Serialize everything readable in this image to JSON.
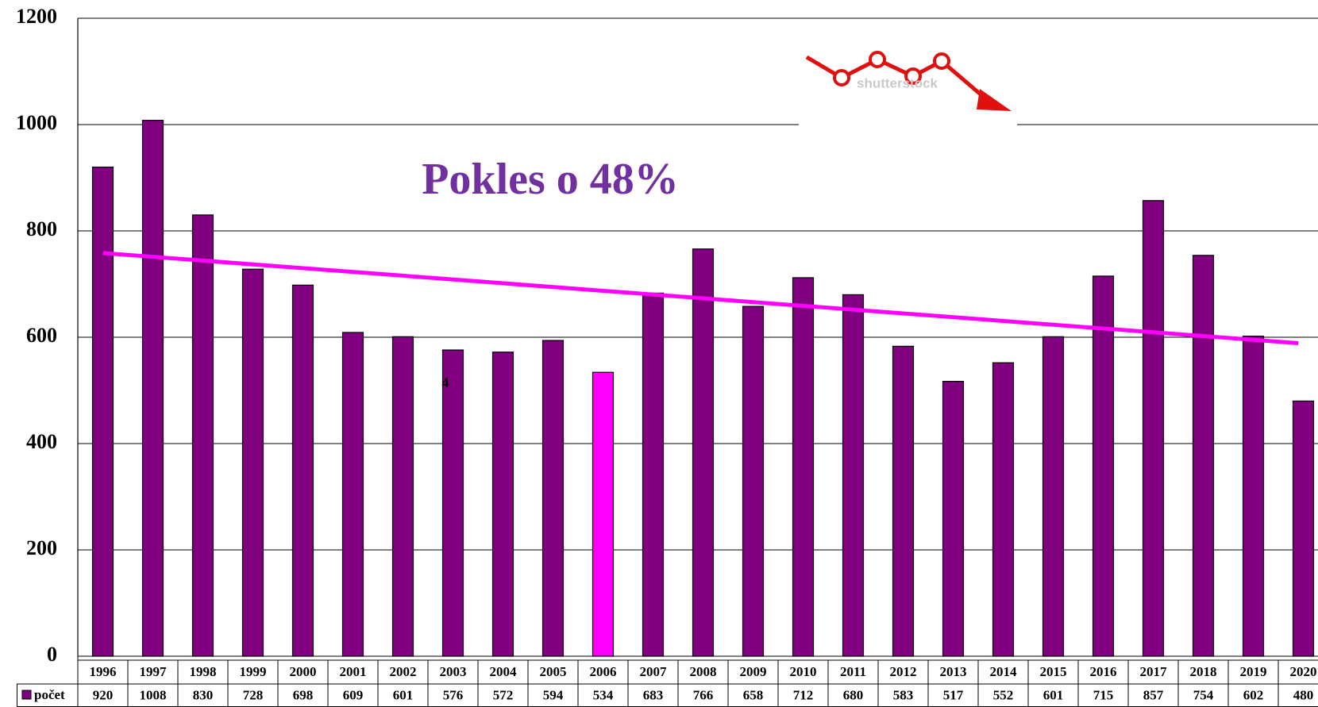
{
  "chart_data": {
    "type": "bar",
    "categories": [
      "1996",
      "1997",
      "1998",
      "1999",
      "2000",
      "2001",
      "2002",
      "2003",
      "2004",
      "2005",
      "2006",
      "2007",
      "2008",
      "2009",
      "2010",
      "2011",
      "2012",
      "2013",
      "2014",
      "2015",
      "2016",
      "2017",
      "2018",
      "2019",
      "2020"
    ],
    "series": [
      {
        "name": "počet",
        "color": "#800080",
        "values": [
          920,
          1008,
          830,
          728,
          698,
          609,
          601,
          576,
          572,
          594,
          534,
          683,
          766,
          658,
          712,
          680,
          583,
          517,
          552,
          601,
          715,
          857,
          754,
          602,
          480
        ]
      }
    ],
    "highlight": {
      "category": "2006",
      "color": "#ff00ff"
    },
    "trendline": {
      "color": "#ff00ff"
    },
    "ylim": [
      0,
      1200
    ],
    "yticks": [
      0,
      200,
      400,
      600,
      800,
      1000,
      1200
    ],
    "grid": true,
    "annotation": "Pokles o 48%",
    "annotation_color": "#7030a0",
    "stray_label": "4",
    "image_text": "shutterstock"
  }
}
